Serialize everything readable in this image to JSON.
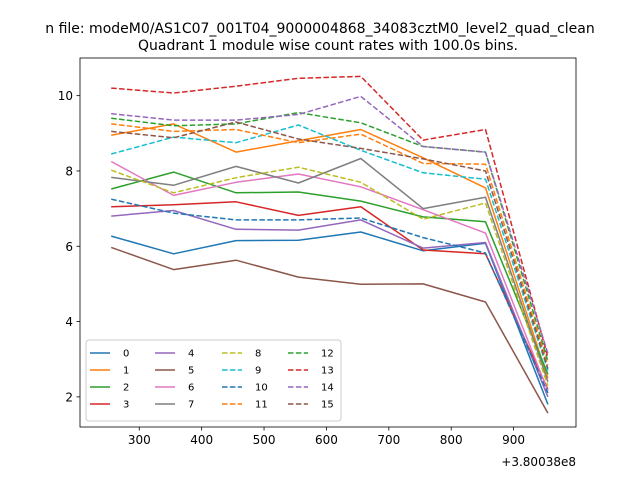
{
  "chart_data": {
    "type": "line",
    "suptitle": "n file: modeM0/AS1C07_001T04_9000004868_34083cztM0_level2_quad_clean",
    "title": "Quadrant 1 module wise count rates with 100.0s bins.",
    "xlabel": "",
    "ylabel": "",
    "x_offset_label": "+3.80038e8",
    "xlim": [
      205,
      1000
    ],
    "ylim": [
      1.2,
      11.0
    ],
    "xticks": [
      300,
      400,
      500,
      600,
      700,
      800,
      900
    ],
    "yticks": [
      2,
      4,
      6,
      8,
      10
    ],
    "x": [
      255,
      355,
      455,
      555,
      655,
      755,
      855,
      955
    ],
    "legend_position": "lower-left",
    "legend_columns": 4,
    "series": [
      {
        "name": "0",
        "color": "#1f77b4",
        "dash": "solid",
        "values": [
          6.27,
          5.8,
          6.15,
          6.16,
          6.38,
          5.88,
          6.08,
          1.8
        ]
      },
      {
        "name": "1",
        "color": "#ff7f0e",
        "dash": "solid",
        "values": [
          8.95,
          9.25,
          8.5,
          8.8,
          9.1,
          8.35,
          7.55,
          2.5
        ]
      },
      {
        "name": "2",
        "color": "#2ca02c",
        "dash": "solid",
        "values": [
          7.52,
          7.97,
          7.42,
          7.44,
          7.2,
          6.78,
          6.65,
          2.6
        ]
      },
      {
        "name": "3",
        "color": "#d62728",
        "dash": "solid",
        "values": [
          7.05,
          7.1,
          7.18,
          6.82,
          7.05,
          5.9,
          5.8,
          2.2
        ]
      },
      {
        "name": "4",
        "color": "#9467bd",
        "dash": "solid",
        "values": [
          6.8,
          6.95,
          6.45,
          6.43,
          6.7,
          5.95,
          6.1,
          2.0
        ]
      },
      {
        "name": "5",
        "color": "#8c564b",
        "dash": "solid",
        "values": [
          5.97,
          5.38,
          5.63,
          5.18,
          4.99,
          5.0,
          4.52,
          1.57
        ]
      },
      {
        "name": "6",
        "color": "#e377c2",
        "dash": "solid",
        "values": [
          8.25,
          7.35,
          7.7,
          7.92,
          7.58,
          6.97,
          6.35,
          2.15
        ]
      },
      {
        "name": "7",
        "color": "#7f7f7f",
        "dash": "solid",
        "values": [
          7.83,
          7.62,
          8.12,
          7.68,
          8.33,
          7.0,
          7.3,
          2.4
        ]
      },
      {
        "name": "8",
        "color": "#bcbd22",
        "dash": "dashed",
        "values": [
          8.02,
          7.42,
          7.82,
          8.1,
          7.7,
          6.72,
          7.15,
          2.3
        ]
      },
      {
        "name": "9",
        "color": "#17becf",
        "dash": "dashed",
        "values": [
          8.45,
          8.9,
          8.75,
          9.22,
          8.55,
          7.95,
          7.78,
          2.7
        ]
      },
      {
        "name": "10",
        "color": "#1f77b4",
        "dash": "dashed",
        "values": [
          7.25,
          6.88,
          6.7,
          6.7,
          6.75,
          6.23,
          5.82,
          2.1
        ]
      },
      {
        "name": "11",
        "color": "#ff7f0e",
        "dash": "dashed",
        "values": [
          9.25,
          9.05,
          9.1,
          8.75,
          8.98,
          8.2,
          8.18,
          2.85
        ]
      },
      {
        "name": "12",
        "color": "#2ca02c",
        "dash": "dashed",
        "values": [
          9.4,
          9.2,
          9.25,
          9.55,
          9.28,
          8.65,
          8.5,
          2.95
        ]
      },
      {
        "name": "13",
        "color": "#d62728",
        "dash": "dashed",
        "values": [
          10.2,
          10.07,
          10.25,
          10.46,
          10.51,
          8.82,
          9.1,
          3.05
        ]
      },
      {
        "name": "14",
        "color": "#9467bd",
        "dash": "dashed",
        "values": [
          9.52,
          9.35,
          9.35,
          9.5,
          9.98,
          8.65,
          8.5,
          3.15
        ]
      },
      {
        "name": "15",
        "color": "#8c564b",
        "dash": "dashed",
        "values": [
          9.05,
          8.88,
          9.3,
          8.85,
          8.6,
          8.32,
          8.0,
          2.75
        ]
      }
    ]
  }
}
